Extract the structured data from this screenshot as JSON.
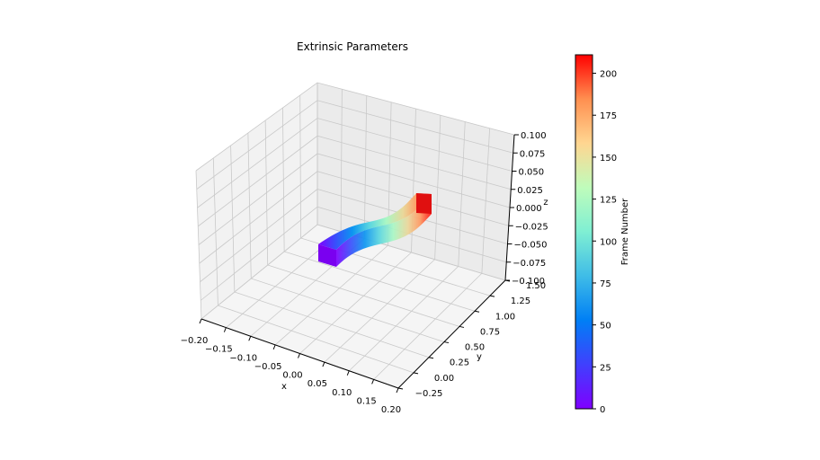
{
  "chart_data": {
    "type": "3d-surface",
    "title": "Extrinsic Parameters",
    "xlabel": "x",
    "ylabel": "y",
    "zlabel": "z",
    "xlim": [
      -0.2,
      0.2
    ],
    "ylim": [
      -0.25,
      1.5
    ],
    "zlim": [
      -0.1,
      0.1
    ],
    "xticks": [
      "−0.20",
      "−0.15",
      "−0.10",
      "−0.05",
      "0.00",
      "0.05",
      "0.10",
      "0.15",
      "0.20"
    ],
    "yticks": [
      "−0.25",
      "0.00",
      "0.25",
      "0.50",
      "0.75",
      "1.00",
      "1.25",
      "1.50"
    ],
    "zticks": [
      "0.100",
      "0.075",
      "0.050",
      "0.025",
      "0.000",
      "−0.025",
      "−0.050",
      "−0.075",
      "−0.100"
    ],
    "grid": true,
    "colormap": "rainbow",
    "colorbar": {
      "label": "Frame Number",
      "range": [
        0,
        211
      ],
      "ticks": [
        "0",
        "25",
        "50",
        "75",
        "100",
        "125",
        "150",
        "175",
        "200"
      ]
    },
    "trajectory": {
      "frames": [
        0,
        211
      ],
      "path_color_start": "#7f00ff",
      "path_color_end": "#ff0000"
    }
  }
}
